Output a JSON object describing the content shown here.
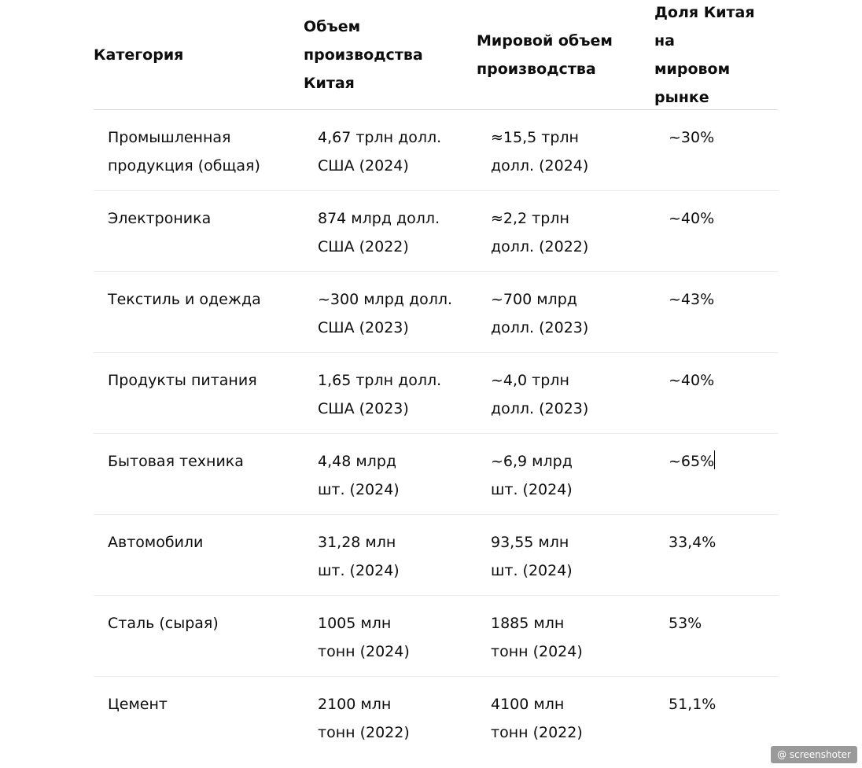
{
  "table": {
    "headers": [
      "Категория",
      "Объем\nпроизводства\nКитая",
      "Мировой объем\nпроизводства",
      "Доля Китая на\nмировом\nрынке"
    ],
    "rows": [
      {
        "category": "Промышленная\nпродукция (общая)",
        "china": "4,67 трлн долл.\nСША (2024)",
        "world": "≈15,5 трлн\nдолл. (2024)",
        "share": "~30%"
      },
      {
        "category": "Электроника",
        "china": "874 млрд долл.\nСША (2022)",
        "world": "≈2,2 трлн\nдолл. (2022)",
        "share": "~40%"
      },
      {
        "category": "Текстиль и одежда",
        "china": "~300 млрд долл.\nСША (2023)",
        "world": "~700 млрд\nдолл. (2023)",
        "share": "~43%"
      },
      {
        "category": "Продукты питания",
        "china": "1,65 трлн долл.\nСША (2023)",
        "world": "~4,0 трлн\nдолл. (2023)",
        "share": "~40%"
      },
      {
        "category": "Бытовая техника",
        "china": "4,48 млрд\nшт. (2024)",
        "world": "~6,9 млрд\nшт. (2024)",
        "share": "~65%"
      },
      {
        "category": "Автомобили",
        "china": "31,28 млн\nшт. (2024)",
        "world": "93,55 млн\nшт. (2024)",
        "share": "33,4%"
      },
      {
        "category": "Сталь (сырая)",
        "china": "1005 млн\nтонн (2024)",
        "world": "1885 млн\nтонн (2024)",
        "share": "53%"
      },
      {
        "category": "Цемент",
        "china": "2100 млн\nтонн (2022)",
        "world": "4100 млн\nтонн (2022)",
        "share": "51,1%"
      }
    ]
  },
  "watermark": {
    "icon": "at-sign-icon",
    "label": "@ screenshoter"
  }
}
